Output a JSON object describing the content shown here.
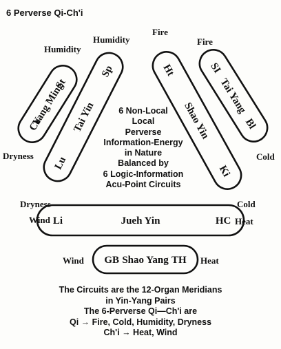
{
  "title": "6 Perverse Qi-Ch'i",
  "diagram": {
    "loops": {
      "yang_ming": {
        "left": "Co",
        "center": "Yang Ming",
        "right": "St"
      },
      "tai_yin": {
        "left": "Lu",
        "center": "Tai Yin",
        "right": "Sp"
      },
      "shao_yin": {
        "left": "Ht",
        "center": "Shao Yin",
        "right": "Ki"
      },
      "tai_yang": {
        "left": "SI",
        "center": "Tai Yang",
        "right": "Bl"
      },
      "jueh_yin": {
        "left": "Li",
        "center": "Jueh Yin",
        "right": "HC"
      },
      "shao_yang": {
        "left": "GB",
        "center": "Shao Yang",
        "right": "TH"
      }
    },
    "qi_labels": {
      "humidity_left": "Humidity",
      "humidity_center": "Humidity",
      "fire_center": "Fire",
      "fire_right": "Fire",
      "dryness_upper": "Dryness",
      "dryness_lower": "Dryness",
      "cold_upper": "Cold",
      "cold_lower": "Cold",
      "wind_jueh": "Wind",
      "heat_jueh": "Heat",
      "wind_shao": "Wind",
      "heat_shao": "Heat"
    },
    "center_text": [
      "6 Non-Local",
      "Local",
      "Perverse",
      "Information-Energy",
      "in Nature",
      "Balanced by",
      "6 Logic-Information",
      "Acu-Point Circuits"
    ]
  },
  "footer": [
    "The Circuits are the 12-Organ Meridians",
    "in Yin-Yang Pairs",
    "The 6-Perverse Qi—Ch'i are",
    "Qi → Fire, Cold, Humidity, Dryness",
    "Ch'i → Heat, Wind"
  ]
}
